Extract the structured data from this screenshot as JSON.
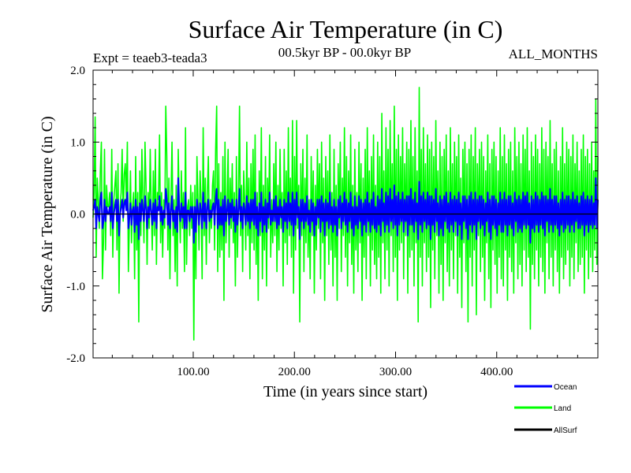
{
  "chart_data": {
    "type": "line",
    "title": "Surface Air Temperature (in C)",
    "subtitle_left": "Expt = teaeb3-teada3",
    "subtitle_center": "00.5kyr BP - 00.0kyr BP",
    "subtitle_right": "ALL_MONTHS",
    "xlabel": "Time (in years since start)",
    "ylabel": "Surface Air Temperature (in C)",
    "xlim": [
      1,
      500
    ],
    "ylim": [
      -2.0,
      2.0
    ],
    "x_ticks": [
      100,
      200,
      300,
      400
    ],
    "x_tick_labels": [
      "100.00",
      "200.00",
      "300.00",
      "400.00"
    ],
    "y_ticks": [
      -2.0,
      -1.0,
      0.0,
      1.0,
      2.0
    ],
    "y_tick_labels": [
      "-2.0",
      "-1.0",
      "0.0",
      "1.0",
      "2.0"
    ],
    "x_start": 1,
    "x_step": 1,
    "series": [
      {
        "name": "Land",
        "color": "#00ff00",
        "values": [
          -0.05,
          0.3,
          1.35,
          -0.6,
          0.5,
          0.2,
          -0.2,
          0.6,
          1.0,
          -0.9,
          -0.4,
          0.9,
          -0.5,
          0.4,
          0.1,
          0.1,
          0.3,
          -0.3,
          0.9,
          -0.6,
          0.2,
          0.4,
          0.6,
          -0.5,
          0.7,
          -1.1,
          0.1,
          0.3,
          0.9,
          -0.1,
          0.55,
          0.7,
          0.2,
          1.0,
          -0.8,
          -0.1,
          0.6,
          -0.4,
          0.1,
          0.3,
          -0.9,
          0.8,
          -0.5,
          0.3,
          -1.5,
          0.6,
          -0.3,
          0.9,
          0.2,
          -0.4,
          1.0,
          0.4,
          -0.7,
          0.3,
          -0.2,
          0.9,
          0.1,
          -0.5,
          0.6,
          -0.3,
          0.9,
          -0.7,
          0.3,
          0.2,
          1.1,
          -0.4,
          0.3,
          -0.6,
          0.2,
          -0.2,
          1.5,
          0.8,
          -0.5,
          0.5,
          -0.9,
          0.2,
          1.0,
          -0.3,
          0.2,
          -0.8,
          0.4,
          -1.0,
          0.9,
          0.1,
          -0.4,
          0.6,
          -0.2,
          0.3,
          -0.8,
          1.2,
          -0.7,
          0.1,
          0.2,
          -0.3,
          0.4,
          -0.2,
          0.3,
          -1.75,
          0.4,
          -0.9,
          0.8,
          0.2,
          -0.5,
          0.6,
          0.2,
          -0.9,
          1.2,
          -0.3,
          0.5,
          -0.7,
          0.3,
          0.8,
          -0.4,
          0.2,
          -0.2,
          0.4,
          0.6,
          -0.5,
          0.9,
          1.5,
          -0.8,
          0.7,
          -0.6,
          0.3,
          -0.5,
          0.8,
          -1.2,
          1.0,
          -0.4,
          0.1,
          0.9,
          -0.6,
          0.5,
          -0.2,
          0.7,
          -0.4,
          0.3,
          -1.0,
          0.8,
          -0.6,
          0.2,
          1.5,
          -0.3,
          0.4,
          -0.8,
          0.6,
          0.2,
          -0.5,
          1.0,
          -0.3,
          0.5,
          -0.9,
          0.7,
          -0.4,
          0.9,
          -0.5,
          1.1,
          -0.7,
          0.3,
          -1.2,
          0.6,
          -0.3,
          1.2,
          -0.9,
          0.4,
          -0.5,
          0.8,
          -1.0,
          0.5,
          -0.2,
          1.1,
          -0.6,
          0.2,
          -0.4,
          0.7,
          -0.3,
          1.0,
          -0.8,
          0.4,
          -0.5,
          0.9,
          -0.2,
          0.3,
          -1.0,
          0.9,
          -0.4,
          0.6,
          -0.7,
          1.2,
          -0.3,
          0.5,
          -0.6,
          1.3,
          -1.1,
          0.8,
          -0.5,
          1.3,
          -0.2,
          0.4,
          -1.5,
          0.7,
          -0.3,
          0.9,
          -0.8,
          0.5,
          -0.4,
          1.1,
          -0.6,
          0.2,
          -0.9,
          0.8,
          -0.3,
          0.6,
          -1.1,
          0.4,
          -0.5,
          0.9,
          -0.2,
          0.7,
          -0.9,
          1.0,
          -0.4,
          0.5,
          -1.2,
          0.8,
          -0.3,
          0.6,
          -0.7,
          1.1,
          -0.5,
          0.3,
          -1.0,
          0.9,
          -0.6,
          0.4,
          -1.2,
          0.7,
          -0.2,
          1.0,
          -0.8,
          0.5,
          -0.3,
          1.2,
          -0.6,
          0.8,
          -1.0,
          0.6,
          -0.4,
          1.1,
          -0.7,
          0.4,
          -1.1,
          0.9,
          -0.5,
          0.3,
          -0.8,
          1.0,
          -0.4,
          0.7,
          -1.2,
          0.5,
          -0.6,
          0.9,
          -0.9,
          1.2,
          -0.3,
          0.6,
          -1.0,
          0.8,
          -0.5,
          1.1,
          -0.7,
          0.4,
          -0.9,
          1.0,
          -0.6,
          0.8,
          -1.1,
          1.4,
          -0.4,
          0.6,
          -0.9,
          1.2,
          -0.5,
          0.9,
          -1.0,
          1.3,
          -0.3,
          0.7,
          -0.8,
          1.5,
          -0.6,
          0.9,
          -1.2,
          1.1,
          -0.5,
          0.8,
          -0.4,
          1.2,
          -0.9,
          0.7,
          -0.3,
          1.0,
          -1.1,
          0.9,
          -0.6,
          1.3,
          -0.5,
          0.8,
          -1.0,
          1.2,
          -0.4,
          0.6,
          -1.5,
          1.76,
          -0.6,
          0.9,
          -1.0,
          1.2,
          -0.4,
          0.7,
          -0.8,
          1.1,
          -0.6,
          0.9,
          -1.3,
          1.0,
          -0.5,
          0.8,
          -0.9,
          1.3,
          -0.3,
          0.6,
          -1.1,
          1.0,
          -0.7,
          0.8,
          -1.2,
          0.9,
          -0.4,
          1.1,
          -0.8,
          0.6,
          -1.0,
          1.2,
          -0.5,
          0.7,
          -0.9,
          1.0,
          -0.3,
          0.8,
          -1.1,
          1.1,
          -0.6,
          0.5,
          -1.3,
          0.9,
          -0.4,
          1.0,
          -0.8,
          0.7,
          -1.5,
          0.9,
          -0.6,
          1.1,
          -1.0,
          0.8,
          -0.5,
          1.2,
          -1.4,
          0.7,
          -0.3,
          0.9,
          -0.8,
          1.0,
          -0.6,
          0.8,
          -1.2,
          0.6,
          -0.4,
          1.1,
          -0.9,
          0.7,
          -1.3,
          0.9,
          -0.5,
          1.0,
          -0.7,
          0.8,
          -1.1,
          0.6,
          -0.6,
          1.2,
          -0.9,
          0.8,
          -1.0,
          1.1,
          -0.5,
          0.7,
          -1.2,
          0.9,
          -0.6,
          1.0,
          -0.8,
          0.6,
          -1.1,
          1.2,
          -0.4,
          0.8,
          -0.9,
          1.0,
          -0.7,
          0.7,
          -1.0,
          1.1,
          -0.5,
          0.9,
          -0.8,
          1.2,
          -0.6,
          0.6,
          -1.6,
          1.0,
          -0.7,
          0.8,
          -0.9,
          1.1,
          -0.5,
          0.9,
          -1.0,
          0.7,
          -0.6,
          1.2,
          -0.8,
          0.9,
          -1.1,
          1.0,
          -0.4,
          0.8,
          -0.9,
          1.3,
          -0.6,
          0.7,
          -1.0,
          0.9,
          -0.5,
          1.0,
          -0.8,
          0.6,
          -1.1,
          0.8,
          -0.6,
          1.2,
          -0.9,
          0.7,
          -0.7,
          1.0,
          -0.5,
          0.9,
          -1.0,
          0.8,
          -0.6,
          1.1,
          -0.9,
          0.7,
          -0.4,
          1.0,
          -0.8,
          0.6,
          -0.7,
          0.9,
          -0.6,
          1.1,
          -1.1,
          0.8,
          -0.5,
          0.9,
          -0.9,
          0.7,
          -0.6,
          1.0,
          -0.8,
          0.6,
          -0.5,
          1.6,
          -0.7,
          0.8
        ]
      },
      {
        "name": "Ocean",
        "color": "#0000ff",
        "values": [
          0.05,
          0.1,
          0.2,
          -0.2,
          0.1,
          0.0,
          -0.1,
          0.2,
          0.3,
          -0.2,
          -0.1,
          0.2,
          -0.1,
          0.1,
          0.0,
          0.0,
          0.1,
          -0.1,
          0.3,
          -0.2,
          0.0,
          0.1,
          0.2,
          -0.1,
          0.2,
          -0.3,
          0.0,
          0.1,
          0.2,
          -0.05,
          0.15,
          0.2,
          0.05,
          0.3,
          -0.2,
          -0.05,
          0.15,
          -0.15,
          0.05,
          0.1,
          -0.25,
          0.2,
          -0.15,
          0.1,
          -0.35,
          0.15,
          -0.1,
          0.2,
          0.05,
          -0.1,
          0.25,
          0.1,
          -0.2,
          0.1,
          -0.05,
          0.2,
          0.05,
          -0.15,
          0.15,
          -0.1,
          0.2,
          -0.2,
          0.1,
          0.05,
          0.25,
          -0.1,
          0.1,
          -0.15,
          0.05,
          -0.05,
          0.35,
          0.2,
          -0.15,
          0.15,
          -0.2,
          0.05,
          0.25,
          -0.1,
          0.05,
          -0.2,
          0.1,
          -0.25,
          0.5,
          0.05,
          -0.1,
          0.15,
          -0.05,
          0.1,
          -0.2,
          0.3,
          -0.2,
          0.05,
          0.05,
          -0.1,
          0.1,
          -0.05,
          0.1,
          -0.4,
          0.1,
          -0.25,
          0.2,
          0.05,
          -0.15,
          0.15,
          0.05,
          -0.2,
          0.3,
          -0.1,
          0.15,
          -0.2,
          0.1,
          0.2,
          -0.1,
          0.05,
          -0.05,
          0.1,
          0.15,
          -0.15,
          0.2,
          0.35,
          -0.2,
          0.2,
          -0.15,
          0.1,
          -0.15,
          0.2,
          -0.3,
          0.25,
          -0.1,
          0.05,
          0.2,
          -0.15,
          0.15,
          -0.05,
          0.2,
          -0.1,
          0.1,
          -0.25,
          0.2,
          -0.15,
          0.05,
          0.35,
          -0.1,
          0.1,
          -0.2,
          0.15,
          0.05,
          -0.15,
          0.25,
          -0.1,
          0.15,
          -0.2,
          0.2,
          -0.1,
          0.2,
          -0.15,
          0.3,
          -0.2,
          0.1,
          -0.3,
          0.15,
          -0.1,
          0.3,
          -0.25,
          0.1,
          -0.15,
          0.2,
          -0.25,
          0.15,
          -0.05,
          0.3,
          -0.15,
          0.05,
          -0.1,
          0.2,
          -0.1,
          0.25,
          -0.2,
          0.1,
          -0.15,
          0.2,
          -0.05,
          0.1,
          -0.25,
          0.2,
          -0.1,
          0.15,
          -0.2,
          0.3,
          -0.1,
          0.15,
          -0.15,
          0.3,
          -0.3,
          0.2,
          -0.15,
          0.3,
          -0.05,
          0.1,
          -0.35,
          0.2,
          -0.1,
          0.2,
          -0.2,
          0.15,
          -0.1,
          0.25,
          -0.15,
          0.05,
          -0.25,
          0.2,
          -0.1,
          0.15,
          -0.3,
          0.1,
          -0.15,
          0.2,
          -0.05,
          0.2,
          -0.25,
          0.25,
          -0.1,
          0.15,
          -0.3,
          0.2,
          -0.1,
          0.15,
          -0.2,
          0.3,
          -0.15,
          0.1,
          -0.25,
          0.2,
          -0.15,
          0.1,
          -0.3,
          0.2,
          -0.05,
          0.25,
          -0.2,
          0.15,
          -0.1,
          0.3,
          -0.15,
          0.2,
          -0.25,
          0.15,
          -0.1,
          0.3,
          -0.2,
          0.1,
          -0.3,
          0.25,
          -0.15,
          0.1,
          -0.2,
          0.25,
          -0.1,
          0.2,
          -0.3,
          0.15,
          -0.15,
          0.2,
          -0.25,
          0.3,
          -0.1,
          0.15,
          -0.25,
          0.2,
          -0.15,
          0.3,
          -0.2,
          0.1,
          -0.25,
          0.25,
          -0.15,
          0.2,
          -0.3,
          0.35,
          -0.1,
          0.15,
          -0.25,
          0.3,
          -0.15,
          0.25,
          -0.25,
          0.35,
          -0.1,
          0.2,
          -0.2,
          0.4,
          -0.15,
          0.25,
          -0.3,
          0.3,
          -0.15,
          0.2,
          -0.1,
          0.3,
          -0.25,
          0.2,
          -0.1,
          0.25,
          -0.3,
          0.25,
          -0.15,
          0.35,
          -0.15,
          0.2,
          -0.25,
          0.3,
          -0.1,
          0.15,
          -0.35,
          0.45,
          -0.15,
          0.25,
          -0.25,
          0.3,
          -0.1,
          0.2,
          -0.2,
          0.3,
          -0.15,
          0.25,
          -0.35,
          0.25,
          -0.15,
          0.2,
          -0.25,
          0.35,
          -0.1,
          0.15,
          -0.3,
          0.25,
          -0.2,
          0.2,
          -0.3,
          0.25,
          -0.1,
          0.3,
          -0.2,
          0.15,
          -0.25,
          0.3,
          -0.15,
          0.2,
          -0.25,
          0.25,
          -0.1,
          0.2,
          -0.3,
          0.3,
          -0.15,
          0.15,
          -0.35,
          0.25,
          -0.1,
          0.25,
          -0.2,
          0.2,
          -0.35,
          0.25,
          -0.15,
          0.3,
          -0.25,
          0.2,
          -0.15,
          0.3,
          -0.35,
          0.2,
          -0.1,
          0.25,
          -0.2,
          0.25,
          -0.15,
          0.2,
          -0.3,
          0.15,
          -0.1,
          0.3,
          -0.25,
          0.2,
          -0.35,
          0.25,
          -0.15,
          0.25,
          -0.2,
          0.2,
          -0.3,
          0.15,
          -0.15,
          0.3,
          -0.25,
          0.2,
          -0.25,
          0.3,
          -0.15,
          0.2,
          -0.3,
          0.25,
          -0.15,
          0.25,
          -0.2,
          0.15,
          -0.3,
          0.3,
          -0.1,
          0.2,
          -0.25,
          0.25,
          -0.2,
          0.2,
          -0.25,
          0.3,
          -0.15,
          0.25,
          -0.2,
          0.3,
          -0.15,
          0.15,
          -0.4,
          0.25,
          -0.2,
          0.2,
          -0.25,
          0.3,
          -0.15,
          0.25,
          -0.25,
          0.2,
          -0.15,
          0.3,
          -0.2,
          0.25,
          -0.3,
          0.25,
          -0.1,
          0.2,
          -0.25,
          0.35,
          -0.15,
          0.2,
          -0.25,
          0.25,
          -0.15,
          0.25,
          -0.2,
          0.15,
          -0.3,
          0.2,
          -0.15,
          0.3,
          -0.25,
          0.2,
          -0.2,
          0.25,
          -0.15,
          0.25,
          -0.25,
          0.2,
          -0.15,
          0.3,
          -0.25,
          0.2,
          -0.1,
          0.25,
          -0.2,
          0.15,
          -0.2,
          0.25,
          -0.15,
          0.3,
          -0.3,
          0.2,
          -0.15,
          0.25,
          -0.25,
          0.2,
          -0.15,
          0.25,
          -0.2,
          0.15,
          -0.15,
          0.5,
          -0.2,
          0.2
        ]
      },
      {
        "name": "AllSurf",
        "color": "#000000",
        "values": [
          0.0,
          0.0,
          0.0,
          0.0,
          0.0,
          0.0,
          0.0,
          0.0,
          0.0,
          0.0
        ]
      }
    ]
  },
  "legend": {
    "items": [
      {
        "label": "Ocean",
        "color": "#0000ff"
      },
      {
        "label": "Land",
        "color": "#00ff00"
      },
      {
        "label": "AllSurf",
        "color": "#000000"
      }
    ]
  }
}
